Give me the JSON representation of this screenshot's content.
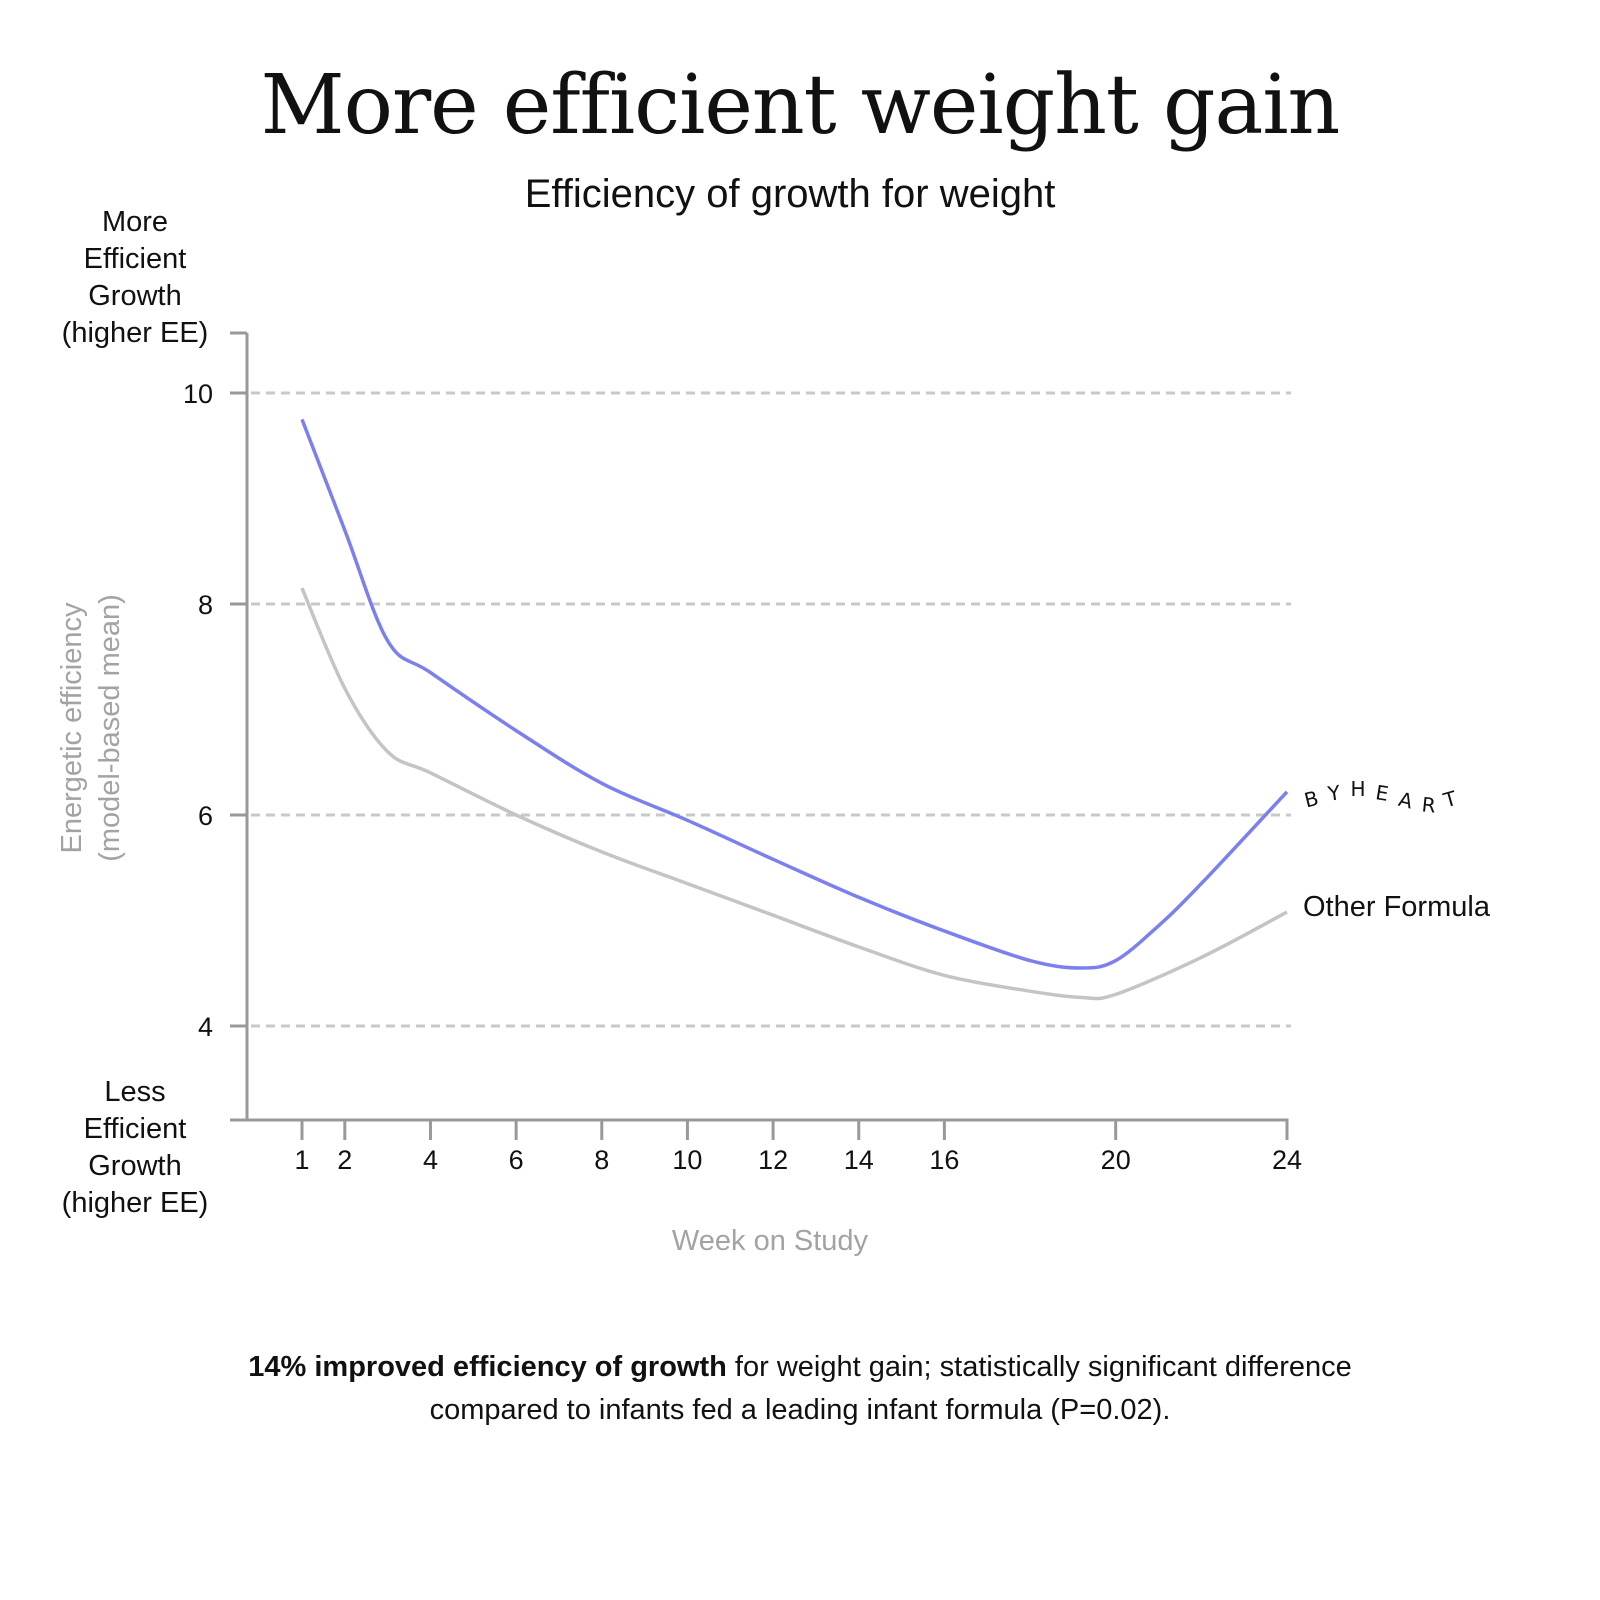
{
  "page": {
    "title": "More efficient weight gain",
    "subtitle": "Efficiency of growth for weight",
    "top_annotation": [
      "More",
      "Efficient",
      "Growth",
      "(higher EE)"
    ],
    "bottom_annotation": [
      "Less",
      "Efficient",
      "Growth",
      "(higher EE)"
    ],
    "footnote": {
      "bold": "14% improved efficiency of growth",
      "rest_line1": " for weight gain; statistically significant difference",
      "line2": "compared to infants fed a leading infant formula (P=0.02)."
    }
  },
  "chart_data": {
    "type": "line",
    "title": "Efficiency of growth for weight",
    "xlabel": "Week on Study",
    "ylabel": "Energetic efficiency (model-based mean)",
    "ylabel_lines": [
      "Energetic efficiency",
      "(model-based mean)"
    ],
    "xlim": [
      0,
      24
    ],
    "ylim": [
      3.1,
      10.6
    ],
    "x_ticks": [
      1,
      2,
      4,
      6,
      8,
      10,
      12,
      14,
      16,
      20,
      24
    ],
    "x_tick_labels": [
      "1",
      "2",
      "4",
      "6",
      "8",
      "10",
      "12",
      "14",
      "16",
      "20",
      "24"
    ],
    "y_ticks": [
      4,
      6,
      8,
      10
    ],
    "y_tick_labels": [
      "4",
      "6",
      "8",
      "10"
    ],
    "grid": "horizontal dashed at y ticks",
    "legend": "inline labels at right end of lines",
    "series": [
      {
        "name": "BYHEART",
        "color": "#7b80ee",
        "x": [
          1,
          2,
          3,
          4,
          6,
          8,
          10,
          12,
          14,
          16,
          18,
          19.2,
          20,
          21,
          22,
          24
        ],
        "values": [
          9.75,
          8.7,
          7.65,
          7.35,
          6.8,
          6.3,
          5.95,
          5.58,
          5.22,
          4.9,
          4.62,
          4.55,
          4.62,
          4.95,
          5.35,
          6.22
        ]
      },
      {
        "name": "Other Formula",
        "color": "#c4c4c4",
        "x": [
          1,
          2,
          3,
          4,
          6,
          8,
          10,
          12,
          14,
          16,
          18,
          19.2,
          20,
          22,
          24
        ],
        "values": [
          8.15,
          7.2,
          6.6,
          6.4,
          6.0,
          5.65,
          5.35,
          5.05,
          4.75,
          4.48,
          4.33,
          4.27,
          4.3,
          4.65,
          5.08
        ]
      }
    ],
    "colors": {
      "axis": "#999999",
      "grid": "#c8c8c8",
      "axis_title": "#a3a3a3"
    }
  }
}
